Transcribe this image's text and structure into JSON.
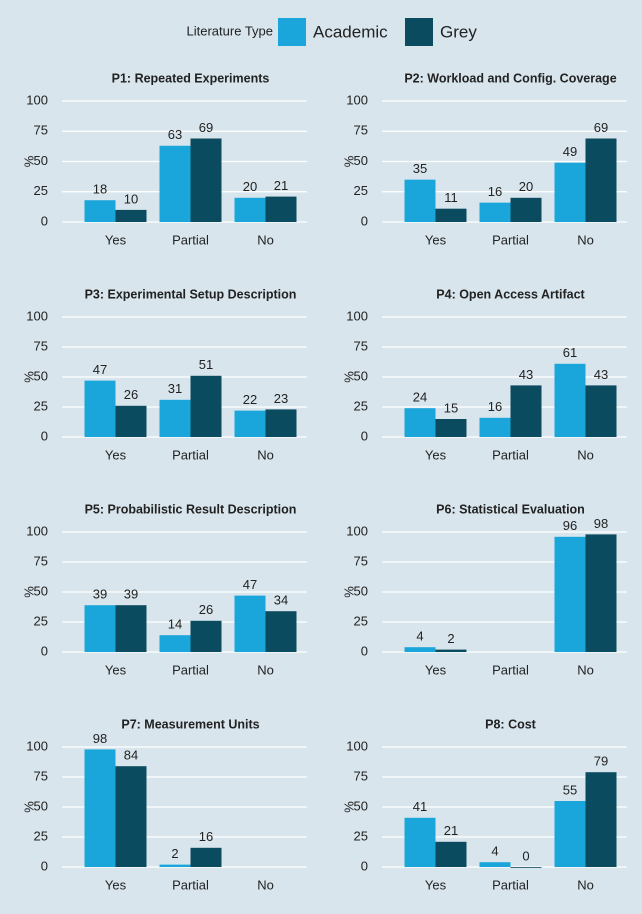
{
  "legend_title": "Literature Type",
  "chart_data": [
    {
      "type": "bar",
      "title": "P1: Repeated Experiments",
      "ylabel": "%",
      "categories": [
        "Yes",
        "Partial",
        "No"
      ],
      "series": [
        {
          "name": "Academic",
          "color": "#1aa6da",
          "values": [
            18,
            63,
            20
          ]
        },
        {
          "name": "Grey",
          "color": "#0b4b5f",
          "values": [
            10,
            69,
            21
          ]
        }
      ],
      "ylim": [
        0,
        100
      ],
      "yticks": [
        0,
        25,
        50,
        75,
        100
      ],
      "grid": true
    },
    {
      "type": "bar",
      "title": "P2: Workload and Config. Coverage",
      "ylabel": "%",
      "categories": [
        "Yes",
        "Partial",
        "No"
      ],
      "series": [
        {
          "name": "Academic",
          "color": "#1aa6da",
          "values": [
            35,
            16,
            49
          ]
        },
        {
          "name": "Grey",
          "color": "#0b4b5f",
          "values": [
            11,
            20,
            69
          ]
        }
      ],
      "ylim": [
        0,
        100
      ],
      "yticks": [
        0,
        25,
        50,
        75,
        100
      ],
      "grid": true
    },
    {
      "type": "bar",
      "title": "P3: Experimental Setup Description",
      "ylabel": "%",
      "categories": [
        "Yes",
        "Partial",
        "No"
      ],
      "series": [
        {
          "name": "Academic",
          "color": "#1aa6da",
          "values": [
            47,
            31,
            22
          ]
        },
        {
          "name": "Grey",
          "color": "#0b4b5f",
          "values": [
            26,
            51,
            23
          ]
        }
      ],
      "ylim": [
        0,
        100
      ],
      "yticks": [
        0,
        25,
        50,
        75,
        100
      ],
      "grid": true
    },
    {
      "type": "bar",
      "title": "P4: Open Access Artifact",
      "ylabel": "%",
      "categories": [
        "Yes",
        "Partial",
        "No"
      ],
      "series": [
        {
          "name": "Academic",
          "color": "#1aa6da",
          "values": [
            24,
            16,
            61
          ]
        },
        {
          "name": "Grey",
          "color": "#0b4b5f",
          "values": [
            15,
            43,
            43
          ]
        }
      ],
      "ylim": [
        0,
        100
      ],
      "yticks": [
        0,
        25,
        50,
        75,
        100
      ],
      "grid": true
    },
    {
      "type": "bar",
      "title": "P5: Probabilistic Result Description",
      "ylabel": "%",
      "categories": [
        "Yes",
        "Partial",
        "No"
      ],
      "series": [
        {
          "name": "Academic",
          "color": "#1aa6da",
          "values": [
            39,
            14,
            47
          ]
        },
        {
          "name": "Grey",
          "color": "#0b4b5f",
          "values": [
            39,
            26,
            34
          ]
        }
      ],
      "ylim": [
        0,
        100
      ],
      "yticks": [
        0,
        25,
        50,
        75,
        100
      ],
      "grid": true
    },
    {
      "type": "bar",
      "title": "P6: Statistical Evaluation",
      "ylabel": "%",
      "categories": [
        "Yes",
        "Partial",
        "No"
      ],
      "series": [
        {
          "name": "Academic",
          "color": "#1aa6da",
          "values": [
            4,
            null,
            96
          ]
        },
        {
          "name": "Grey",
          "color": "#0b4b5f",
          "values": [
            2,
            null,
            98
          ]
        }
      ],
      "ylim": [
        0,
        100
      ],
      "yticks": [
        0,
        25,
        50,
        75,
        100
      ],
      "grid": true
    },
    {
      "type": "bar",
      "title": "P7: Measurement Units",
      "ylabel": "%",
      "categories": [
        "Yes",
        "Partial",
        "No"
      ],
      "series": [
        {
          "name": "Academic",
          "color": "#1aa6da",
          "values": [
            98,
            2,
            null
          ]
        },
        {
          "name": "Grey",
          "color": "#0b4b5f",
          "values": [
            84,
            16,
            null
          ]
        }
      ],
      "ylim": [
        0,
        100
      ],
      "yticks": [
        0,
        25,
        50,
        75,
        100
      ],
      "grid": true
    },
    {
      "type": "bar",
      "title": "P8: Cost",
      "ylabel": "%",
      "categories": [
        "Yes",
        "Partial",
        "No"
      ],
      "series": [
        {
          "name": "Academic",
          "color": "#1aa6da",
          "values": [
            41,
            4,
            55
          ]
        },
        {
          "name": "Grey",
          "color": "#0b4b5f",
          "values": [
            21,
            0,
            79
          ]
        }
      ],
      "ylim": [
        0,
        100
      ],
      "yticks": [
        0,
        25,
        50,
        75,
        100
      ],
      "grid": true
    }
  ]
}
